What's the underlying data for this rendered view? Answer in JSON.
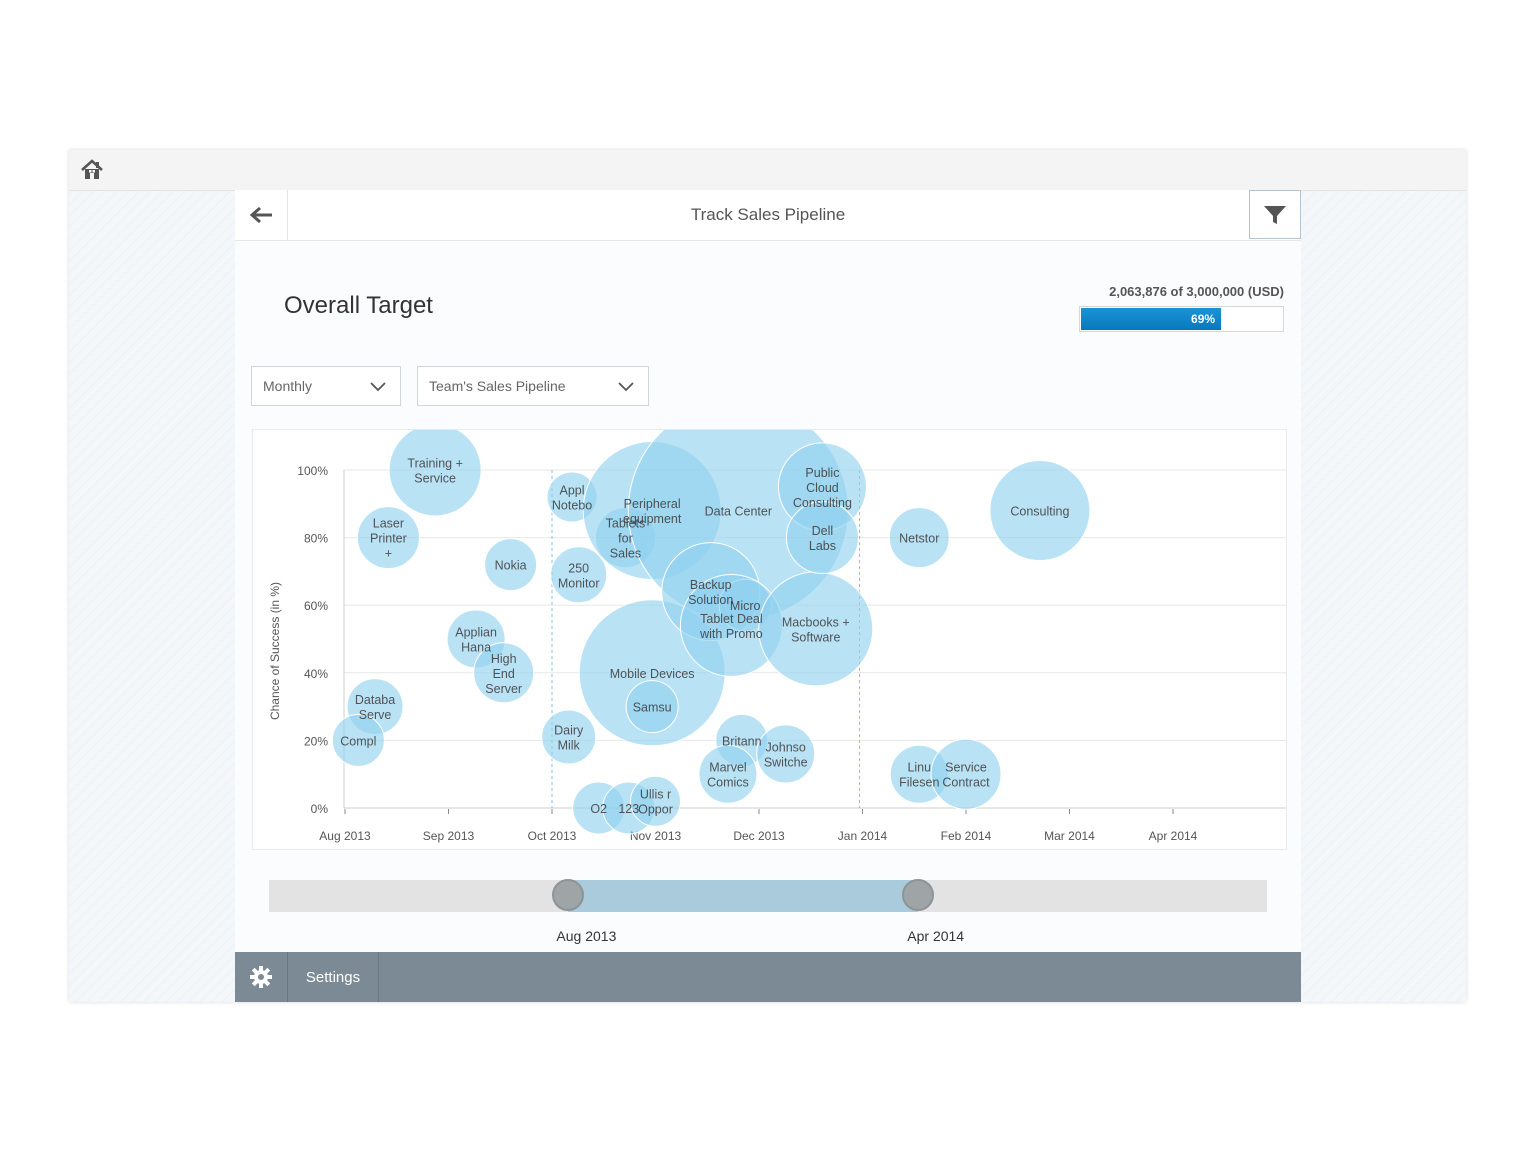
{
  "header": {
    "title": "Track Sales Pipeline"
  },
  "icons": {
    "home": "home-icon",
    "back": "arrow-left-icon",
    "filter": "funnel-icon",
    "settings": "gear-icon"
  },
  "target": {
    "title": "Overall Target",
    "summary": "2,063,876 of 3,000,000 (USD)",
    "progress_label": "69%",
    "progress_fraction": 0.69
  },
  "filters": {
    "period": "Monthly",
    "pipeline": "Team's Sales Pipeline"
  },
  "chart_data": {
    "type": "scatter",
    "variant": "bubble",
    "ylabel": "Chance of Success (in %)",
    "y_ticks": [
      "100%",
      "80%",
      "60%",
      "40%",
      "20%",
      "0%"
    ],
    "x_ticks": [
      "Aug 2013",
      "Sep 2013",
      "Oct 2013",
      "Nov 2013",
      "Dec 2013",
      "Jan 2014",
      "Feb 2014",
      "Mar 2014",
      "Apr 2014"
    ],
    "ylim": [
      0,
      100
    ],
    "grid": true,
    "bubble_color": "#8fd0ef",
    "points": [
      {
        "label": [
          "Training +",
          "Service"
        ],
        "x": "2013-08-28",
        "y": 100,
        "size": 46
      },
      {
        "label": [
          "Laser",
          "Printer",
          "+"
        ],
        "x": "2013-08-14",
        "y": 80,
        "size": 31
      },
      {
        "label": [
          "Databa",
          "Serve"
        ],
        "x": "2013-08-10",
        "y": 30,
        "size": 28
      },
      {
        "label": [
          "Compl"
        ],
        "x": "2013-08-05",
        "y": 20,
        "size": 26
      },
      {
        "label": [
          "Applian",
          "Hana"
        ],
        "x": "2013-09-09",
        "y": 50,
        "size": 29
      },
      {
        "label": [
          "High",
          "End",
          "Server"
        ],
        "x": "2013-09-17",
        "y": 40,
        "size": 30
      },
      {
        "label": [
          "Nokia"
        ],
        "x": "2013-09-19",
        "y": 72,
        "size": 26
      },
      {
        "label": [
          "Appl",
          "Notebo"
        ],
        "x": "2013-10-07",
        "y": 92,
        "size": 25
      },
      {
        "label": [
          "250",
          "Monitor"
        ],
        "x": "2013-10-09",
        "y": 69,
        "size": 28
      },
      {
        "label": [
          "Dairy",
          "Milk"
        ],
        "x": "2013-10-06",
        "y": 21,
        "size": 27
      },
      {
        "label": [
          "O2"
        ],
        "x": "2013-10-15",
        "y": 0,
        "size": 26
      },
      {
        "label": [
          "123"
        ],
        "x": "2013-10-24",
        "y": 0,
        "size": 26
      },
      {
        "label": [
          "Ullis r",
          "Oppor"
        ],
        "x": "2013-11-01",
        "y": 2,
        "size": 25
      },
      {
        "label": [
          "Tablets",
          "for",
          "Sales"
        ],
        "x": "2013-10-23",
        "y": 80,
        "size": 30
      },
      {
        "label": [
          "Peripheral",
          "equipment"
        ],
        "x": "2013-10-31",
        "y": 88,
        "size": 69
      },
      {
        "label": [
          "Mobile Devices"
        ],
        "x": "2013-10-31",
        "y": 40,
        "size": 73
      },
      {
        "label": [
          "Samsu"
        ],
        "x": "2013-10-31",
        "y": 30,
        "size": 26
      },
      {
        "label": [
          "Data Center"
        ],
        "x": "2013-11-25",
        "y": 88,
        "size": 110
      },
      {
        "label": [
          "Backup",
          "Solution"
        ],
        "x": "2013-11-17",
        "y": 64,
        "size": 49
      },
      {
        "label": [
          "Micro"
        ],
        "x": "2013-11-27",
        "y": 60,
        "size": 26
      },
      {
        "label": [
          "Tablet Deal",
          "with Promo"
        ],
        "x": "2013-11-23",
        "y": 54,
        "size": 51
      },
      {
        "label": [
          "Macbooks +",
          "Software"
        ],
        "x": "2013-12-18",
        "y": 53,
        "size": 57
      },
      {
        "label": [
          "Public",
          "Cloud",
          "Consulting"
        ],
        "x": "2013-12-20",
        "y": 95,
        "size": 44
      },
      {
        "label": [
          "Dell",
          "Labs"
        ],
        "x": "2013-12-20",
        "y": 80,
        "size": 36
      },
      {
        "label": [
          "Britann"
        ],
        "x": "2013-11-26",
        "y": 20,
        "size": 26
      },
      {
        "label": [
          "Johnso",
          "Switche"
        ],
        "x": "2013-12-09",
        "y": 16,
        "size": 29
      },
      {
        "label": [
          "Marvel",
          "Comics"
        ],
        "x": "2013-11-22",
        "y": 10,
        "size": 29
      },
      {
        "label": [
          "Netstor"
        ],
        "x": "2014-01-18",
        "y": 80,
        "size": 30
      },
      {
        "label": [
          "Consulting"
        ],
        "x": "2014-02-21",
        "y": 88,
        "size": 50
      },
      {
        "label": [
          "Linu",
          "Filesen"
        ],
        "x": "2014-01-18",
        "y": 10,
        "size": 29
      },
      {
        "label": [
          "Service",
          "Contract"
        ],
        "x": "2014-02-01",
        "y": 10,
        "size": 35
      }
    ],
    "selection_markers": [
      "Oct 2013",
      "Jan 2014"
    ]
  },
  "range": {
    "start_label": "Aug 2013",
    "end_label": "Apr 2014",
    "start_fraction": 0.3,
    "end_fraction": 0.65
  },
  "footer": {
    "settings_label": "Settings"
  }
}
